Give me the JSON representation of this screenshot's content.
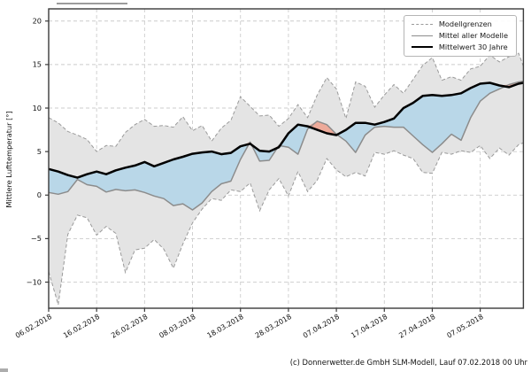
{
  "chart_data": {
    "type": "line",
    "title": "",
    "xlabel": "",
    "ylabel": "Mittlere Lufttemperatur [°]",
    "caption": "(c) Donnerwetter.de GmbH SLM-Modell, Lauf 07.02.2018 00 Uhr",
    "grid": true,
    "legend": {
      "position": "upper right",
      "items": [
        {
          "label": "Modellgrenzen",
          "style": "dashed-gray"
        },
        {
          "label": "Mittel aller Modelle",
          "style": "solid-gray"
        },
        {
          "label": "Mittelwert 30 Jahre",
          "style": "thick-black"
        }
      ]
    },
    "x_tick_days": [
      0,
      10,
      20,
      30,
      40,
      50,
      60,
      70,
      80,
      90
    ],
    "x_tick_labels": [
      "06.02.2018",
      "16.02.2018",
      "26.02.2018",
      "08.03.2018",
      "18.03.2018",
      "28.03.2018",
      "07.04.2018",
      "17.04.2018",
      "27.04.2018",
      "07.05.2018"
    ],
    "y_ticks": [
      -10,
      -5,
      0,
      5,
      10,
      15,
      20
    ],
    "y_tick_labels": [
      "−10",
      "−5",
      "0",
      "5",
      "10",
      "15",
      "20"
    ],
    "xlim": [
      0,
      99
    ],
    "ylim": [
      -13,
      21.4
    ],
    "x_days": [
      0,
      2,
      4,
      6,
      8,
      10,
      12,
      14,
      16,
      18,
      20,
      22,
      24,
      26,
      28,
      30,
      32,
      34,
      36,
      38,
      40,
      42,
      44,
      46,
      48,
      50,
      52,
      54,
      56,
      58,
      60,
      62,
      64,
      66,
      68,
      70,
      72,
      74,
      76,
      78,
      80,
      82,
      84,
      86,
      88,
      90,
      92,
      94,
      96,
      98,
      99
    ],
    "series": [
      {
        "name": "Modellgrenzen obere Grenze",
        "style": "dashed-gray",
        "values": [
          8.9,
          8.3,
          7.3,
          6.9,
          6.4,
          5.0,
          5.7,
          5.6,
          7.2,
          8.1,
          8.7,
          7.9,
          8.0,
          7.8,
          9.0,
          7.4,
          8.0,
          6.2,
          7.7,
          8.6,
          11.3,
          10.2,
          9.1,
          9.2,
          7.9,
          8.8,
          10.4,
          8.9,
          11.5,
          13.5,
          12.2,
          8.8,
          13.0,
          12.5,
          10.1,
          11.5,
          12.7,
          11.7,
          13.3,
          14.9,
          15.8,
          13.2,
          13.6,
          13.2,
          14.5,
          14.8,
          16.1,
          15.3,
          15.9,
          16.3,
          14.8
        ]
      },
      {
        "name": "Modellgrenzen untere Grenze",
        "style": "dashed-gray",
        "values": [
          -8.8,
          -12.6,
          -4.5,
          -2.3,
          -2.6,
          -4.6,
          -3.6,
          -4.4,
          -8.9,
          -6.3,
          -6.1,
          -5.1,
          -6.2,
          -8.4,
          -5.6,
          -3.2,
          -1.6,
          -0.4,
          -0.6,
          0.6,
          0.4,
          1.4,
          -1.8,
          0.6,
          1.9,
          -0.1,
          2.7,
          0.4,
          1.7,
          4.2,
          2.9,
          2.1,
          2.6,
          2.2,
          4.9,
          4.7,
          5.1,
          4.6,
          4.2,
          2.6,
          2.5,
          4.9,
          4.7,
          5.1,
          4.9,
          5.7,
          4.2,
          5.4,
          4.6,
          5.8,
          6.0
        ]
      },
      {
        "name": "Mittel aller Modelle",
        "style": "solid-gray",
        "values": [
          0.3,
          0.1,
          0.4,
          1.8,
          1.2,
          1.0,
          0.35,
          0.65,
          0.5,
          0.6,
          0.3,
          -0.1,
          -0.4,
          -1.2,
          -1.0,
          -1.7,
          -0.9,
          0.4,
          1.3,
          1.6,
          4.1,
          6.1,
          3.9,
          4.0,
          5.7,
          5.5,
          4.7,
          7.6,
          8.5,
          8.1,
          7.0,
          6.2,
          4.9,
          6.9,
          7.8,
          7.9,
          7.8,
          7.8,
          6.8,
          5.8,
          4.9,
          5.9,
          7.0,
          6.3,
          8.9,
          10.8,
          11.7,
          12.2,
          12.7,
          13.0,
          13.1
        ]
      },
      {
        "name": "Mittelwert 30 Jahre",
        "style": "thick-black",
        "values": [
          3.0,
          2.7,
          2.3,
          2.0,
          2.4,
          2.7,
          2.4,
          2.85,
          3.15,
          3.4,
          3.8,
          3.3,
          3.7,
          4.1,
          4.4,
          4.75,
          4.9,
          5.0,
          4.7,
          4.85,
          5.6,
          5.9,
          5.1,
          5.0,
          5.5,
          7.1,
          8.1,
          7.9,
          7.5,
          7.1,
          6.9,
          7.5,
          8.3,
          8.3,
          8.1,
          8.4,
          8.8,
          10.0,
          10.6,
          11.4,
          11.5,
          11.4,
          11.5,
          11.7,
          12.3,
          12.8,
          12.9,
          12.6,
          12.4,
          12.8,
          12.9
        ]
      }
    ],
    "fills": [
      {
        "name": "Modellgrenzen-Band",
        "between": [
          "obere Grenze",
          "untere Grenze"
        ],
        "color": "#e4e4e4"
      },
      {
        "name": "Modelle kaelter als 30-Jahre-Mittel",
        "between": [
          "Mittelwert 30 Jahre",
          "Mittel aller Modelle"
        ],
        "color": "#b9d7e8"
      },
      {
        "name": "Modelle waermer als 30-Jahre-Mittel",
        "between": [
          "Mittel aller Modelle",
          "Mittelwert 30 Jahre"
        ],
        "color": "#edaa9a"
      }
    ],
    "colors": {
      "band_fill": "#e4e4e4",
      "band_edge": "#9a9a9a",
      "colder_fill": "#b9d7e8",
      "warmer_fill": "#edaa9a",
      "model_mean_line": "#8c8c8c",
      "mean30_line": "#000000",
      "grid": "#cccccc",
      "frame": "#3a3a3a",
      "text": "#111111"
    }
  }
}
